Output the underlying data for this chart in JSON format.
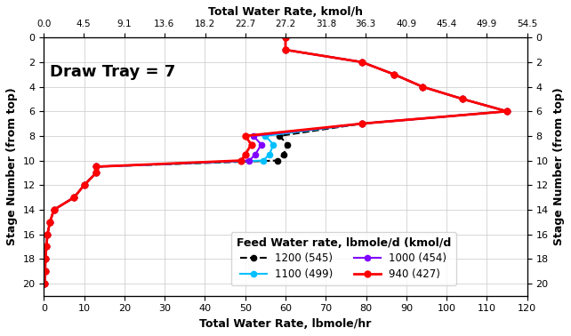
{
  "title_top": "Total Water Rate, kmol/h",
  "xlabel_bottom": "Total Water Rate, lbmole/hr",
  "ylabel_left": "Stage Number (from top)",
  "ylabel_right": "Stage Number (from top)",
  "annotation": "Draw Tray = 7",
  "legend_title": "Feed Water rate, lbmole/d (kmol/d",
  "xlim_lbmole": [
    0,
    120
  ],
  "ylim": [
    0,
    21
  ],
  "yticks": [
    0,
    2,
    4,
    6,
    8,
    10,
    12,
    14,
    16,
    18,
    20
  ],
  "xticks_lbmole": [
    0,
    10,
    20,
    30,
    40,
    50,
    60,
    70,
    80,
    90,
    100,
    110,
    120
  ],
  "xticks_kmol": [
    0.0,
    4.5,
    9.1,
    13.6,
    18.2,
    22.7,
    27.2,
    31.8,
    36.3,
    40.9,
    45.4,
    49.9,
    54.5
  ],
  "s940_stages": [
    0,
    1,
    2,
    3,
    4,
    5,
    6,
    7,
    8,
    8.5,
    9,
    9.5,
    10,
    10.5,
    11,
    12,
    13,
    14,
    15,
    16,
    17,
    18,
    19,
    20
  ],
  "s940_x": [
    60.0,
    62.0,
    80.0,
    88.0,
    95.0,
    100.0,
    115.0,
    80.0,
    50.0,
    51.5,
    50.5,
    49.5,
    48.5,
    13.5,
    13.0,
    10.0,
    7.5,
    2.5,
    1.5,
    1.0,
    0.6,
    0.4,
    0.3,
    0.2
  ],
  "s1000_stages": [
    0,
    1,
    2,
    3,
    4,
    5,
    6,
    7,
    8,
    8.5,
    9,
    9.5,
    10,
    10.5,
    11,
    12,
    13,
    14,
    15,
    16,
    17,
    18,
    19,
    20
  ],
  "s1000_x": [
    60.0,
    62.0,
    80.0,
    88.0,
    95.0,
    100.0,
    115.0,
    80.0,
    52.0,
    54.0,
    53.0,
    51.5,
    51.0,
    13.5,
    13.0,
    10.0,
    7.5,
    2.5,
    1.5,
    1.0,
    0.6,
    0.4,
    0.3,
    0.2
  ],
  "s1100_stages": [
    0,
    1,
    2,
    3,
    4,
    5,
    6,
    7,
    8,
    8.5,
    9,
    9.5,
    10,
    10.5,
    11,
    12,
    13,
    14,
    15,
    16,
    17,
    18,
    19,
    20
  ],
  "s1100_x": [
    60.0,
    62.0,
    80.0,
    88.0,
    95.0,
    100.0,
    115.0,
    80.0,
    55.0,
    57.0,
    56.0,
    55.0,
    54.0,
    13.5,
    13.0,
    10.0,
    7.5,
    2.5,
    1.5,
    1.0,
    0.6,
    0.4,
    0.3,
    0.2
  ],
  "s1200_stages": [
    0,
    1,
    2,
    3,
    4,
    5,
    6,
    7,
    8,
    8.5,
    9,
    9.5,
    10,
    10.5,
    11,
    12,
    13,
    14,
    15,
    16,
    17,
    18,
    19,
    20
  ],
  "s1200_x": [
    60.0,
    62.0,
    80.0,
    88.0,
    95.0,
    100.0,
    115.0,
    80.0,
    58.0,
    60.5,
    59.5,
    58.5,
    58.0,
    13.5,
    13.0,
    10.0,
    7.5,
    2.5,
    1.5,
    1.0,
    0.6,
    0.4,
    0.3,
    0.2
  ],
  "bg_color": "#ffffff",
  "grid_color": "#c8c8c8"
}
